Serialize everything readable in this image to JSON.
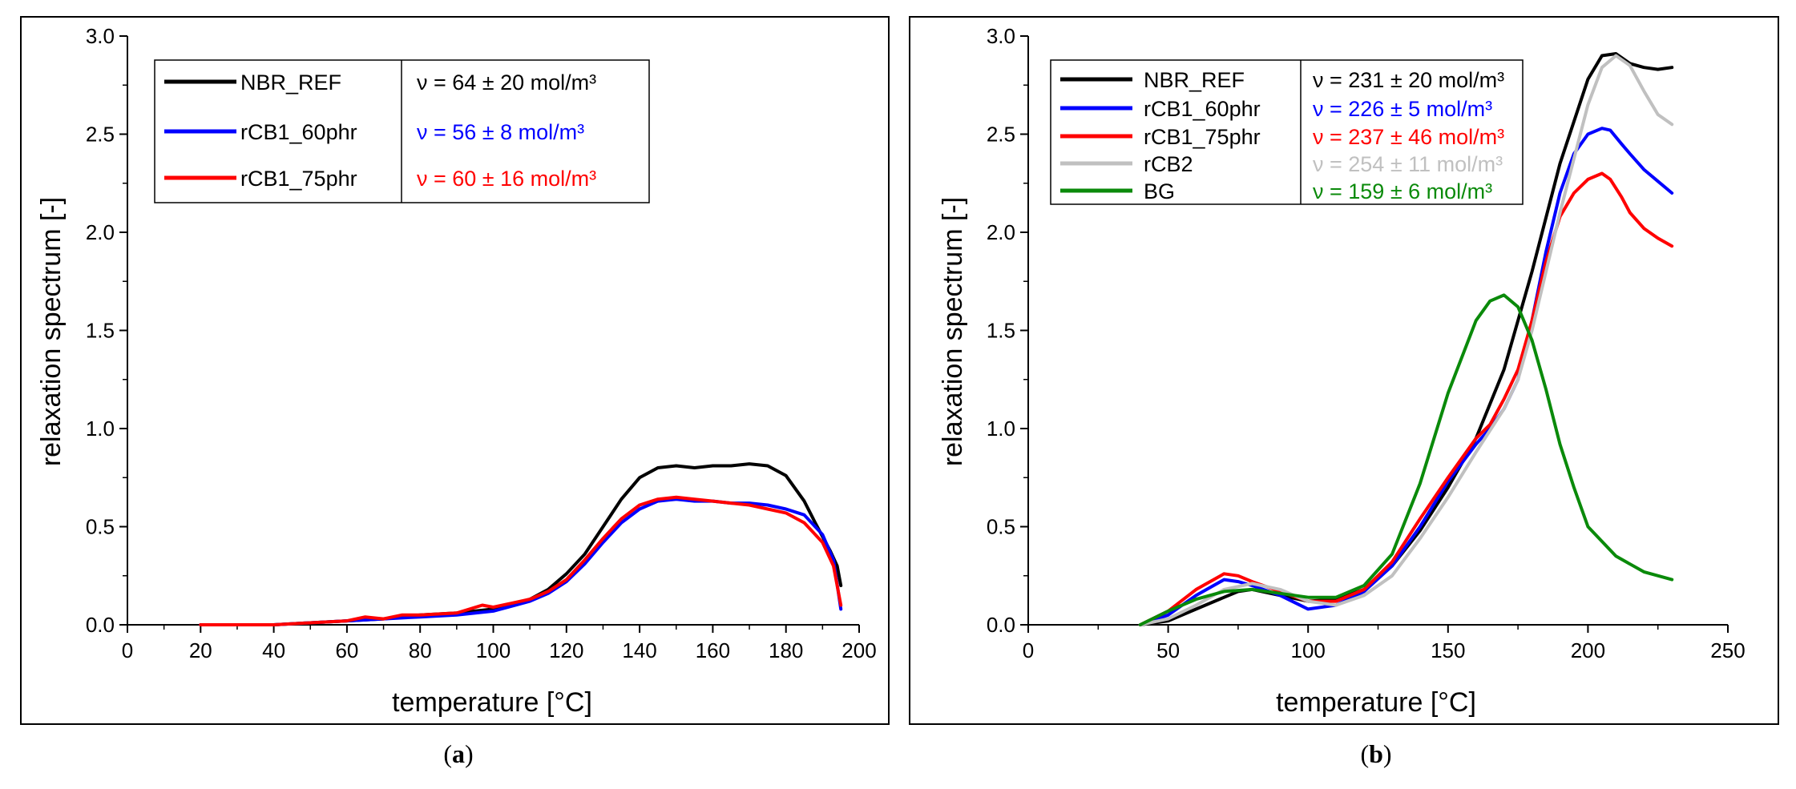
{
  "chart_data": [
    {
      "type": "line",
      "panel_label": "a",
      "xlabel": "temperature [°C]",
      "ylabel": "relaxation spectrum [-]",
      "xlim": [
        0,
        200
      ],
      "ylim": [
        0,
        3.0
      ],
      "xticks": [
        "0",
        "20",
        "40",
        "60",
        "80",
        "100",
        "120",
        "140",
        "160",
        "180",
        "200"
      ],
      "yticks": [
        "0.0",
        "0.5",
        "1.0",
        "1.5",
        "2.0",
        "2.5",
        "3.0"
      ],
      "grid": false,
      "legend_position": "top-left",
      "series": [
        {
          "name": "NBR_REF",
          "annotation": "ν = 64 ± 20 mol/m³",
          "color": "#000000",
          "x": [
            20,
            40,
            50,
            60,
            70,
            80,
            90,
            100,
            110,
            115,
            120,
            125,
            130,
            135,
            140,
            145,
            150,
            155,
            160,
            165,
            170,
            175,
            180,
            185,
            188,
            190,
            192,
            194,
            195
          ],
          "y": [
            0.0,
            0.0,
            0.01,
            0.02,
            0.03,
            0.05,
            0.06,
            0.08,
            0.13,
            0.18,
            0.26,
            0.36,
            0.5,
            0.64,
            0.75,
            0.8,
            0.81,
            0.8,
            0.81,
            0.81,
            0.82,
            0.81,
            0.76,
            0.63,
            0.52,
            0.45,
            0.38,
            0.3,
            0.2
          ]
        },
        {
          "name": "rCB1_60phr",
          "annotation": "ν = 56 ± 8 mol/m³",
          "color": "#0000ff",
          "x": [
            20,
            40,
            50,
            60,
            70,
            80,
            90,
            100,
            110,
            115,
            120,
            125,
            130,
            135,
            140,
            145,
            150,
            155,
            160,
            165,
            170,
            175,
            180,
            185,
            190,
            193,
            195
          ],
          "y": [
            0.0,
            0.0,
            0.01,
            0.02,
            0.03,
            0.04,
            0.05,
            0.07,
            0.12,
            0.16,
            0.22,
            0.31,
            0.42,
            0.52,
            0.59,
            0.63,
            0.64,
            0.63,
            0.63,
            0.62,
            0.62,
            0.61,
            0.59,
            0.56,
            0.46,
            0.33,
            0.08
          ]
        },
        {
          "name": "rCB1_75phr",
          "annotation": "ν = 60 ± 16 mol/m³",
          "color": "#ff0000",
          "x": [
            20,
            40,
            50,
            60,
            65,
            70,
            75,
            80,
            90,
            97,
            100,
            110,
            115,
            120,
            125,
            130,
            135,
            140,
            145,
            150,
            155,
            160,
            165,
            170,
            175,
            180,
            185,
            190,
            193,
            195
          ],
          "y": [
            0.0,
            0.0,
            0.01,
            0.02,
            0.04,
            0.03,
            0.05,
            0.05,
            0.06,
            0.1,
            0.09,
            0.13,
            0.17,
            0.23,
            0.33,
            0.44,
            0.54,
            0.61,
            0.64,
            0.65,
            0.64,
            0.63,
            0.62,
            0.61,
            0.59,
            0.57,
            0.52,
            0.42,
            0.3,
            0.1
          ]
        }
      ]
    },
    {
      "type": "line",
      "panel_label": "b",
      "xlabel": "temperature [°C]",
      "ylabel": "relaxation spectrum [-]",
      "xlim": [
        0,
        250
      ],
      "ylim": [
        0,
        3.0
      ],
      "xticks": [
        "0",
        "50",
        "100",
        "150",
        "200",
        "250"
      ],
      "yticks": [
        "0.0",
        "0.5",
        "1.0",
        "1.5",
        "2.0",
        "2.5",
        "3.0"
      ],
      "grid": false,
      "legend_position": "top-left",
      "series": [
        {
          "name": "NBR_REF",
          "annotation": "ν = 231 ± 20 mol/m³",
          "color": "#000000",
          "x": [
            40,
            50,
            60,
            70,
            75,
            80,
            90,
            100,
            110,
            120,
            130,
            140,
            150,
            160,
            170,
            180,
            190,
            200,
            205,
            210,
            215,
            220,
            225,
            230
          ],
          "y": [
            0.0,
            0.02,
            0.08,
            0.14,
            0.17,
            0.18,
            0.15,
            0.12,
            0.13,
            0.18,
            0.3,
            0.48,
            0.7,
            0.95,
            1.3,
            1.8,
            2.35,
            2.78,
            2.9,
            2.91,
            2.86,
            2.84,
            2.83,
            2.84
          ]
        },
        {
          "name": "rCB1_60phr",
          "annotation": "ν = 226 ± 5 mol/m³",
          "color": "#0000ff",
          "x": [
            40,
            50,
            60,
            70,
            75,
            80,
            90,
            100,
            110,
            120,
            130,
            140,
            150,
            160,
            165,
            170,
            175,
            180,
            185,
            190,
            195,
            200,
            205,
            208,
            212,
            215,
            220,
            225,
            230
          ],
          "y": [
            0.0,
            0.05,
            0.15,
            0.23,
            0.22,
            0.2,
            0.15,
            0.08,
            0.1,
            0.17,
            0.3,
            0.5,
            0.73,
            0.92,
            1.0,
            1.1,
            1.25,
            1.55,
            1.9,
            2.2,
            2.4,
            2.5,
            2.53,
            2.52,
            2.45,
            2.4,
            2.32,
            2.26,
            2.2
          ]
        },
        {
          "name": "rCB1_75phr",
          "annotation": "ν = 237 ± 46 mol/m³",
          "color": "#ff0000",
          "x": [
            40,
            50,
            60,
            70,
            75,
            80,
            90,
            100,
            110,
            120,
            130,
            140,
            150,
            160,
            165,
            170,
            175,
            180,
            185,
            190,
            195,
            200,
            205,
            208,
            212,
            215,
            220,
            225,
            230
          ],
          "y": [
            0.0,
            0.07,
            0.18,
            0.26,
            0.25,
            0.22,
            0.17,
            0.12,
            0.12,
            0.18,
            0.32,
            0.54,
            0.75,
            0.95,
            1.02,
            1.15,
            1.3,
            1.55,
            1.85,
            2.08,
            2.2,
            2.27,
            2.3,
            2.27,
            2.18,
            2.1,
            2.02,
            1.97,
            1.93
          ]
        },
        {
          "name": "rCB2",
          "annotation": "ν = 254 ± 11 mol/m³",
          "color": "#c0c0c0",
          "x": [
            40,
            50,
            60,
            70,
            80,
            90,
            100,
            110,
            120,
            130,
            140,
            150,
            160,
            170,
            175,
            180,
            190,
            200,
            205,
            210,
            215,
            220,
            225,
            230
          ],
          "y": [
            0.0,
            0.03,
            0.1,
            0.18,
            0.21,
            0.18,
            0.12,
            0.1,
            0.15,
            0.25,
            0.44,
            0.65,
            0.88,
            1.1,
            1.25,
            1.5,
            2.1,
            2.65,
            2.84,
            2.9,
            2.85,
            2.72,
            2.6,
            2.55
          ]
        },
        {
          "name": "BG",
          "annotation": "ν = 159 ± 6 mol/m³",
          "color": "#0a8a0a",
          "x": [
            40,
            50,
            60,
            70,
            80,
            90,
            100,
            110,
            120,
            130,
            140,
            150,
            160,
            165,
            170,
            175,
            180,
            185,
            190,
            195,
            200,
            210,
            220,
            230
          ],
          "y": [
            0.0,
            0.07,
            0.13,
            0.17,
            0.18,
            0.16,
            0.14,
            0.14,
            0.2,
            0.36,
            0.72,
            1.18,
            1.55,
            1.65,
            1.68,
            1.62,
            1.45,
            1.2,
            0.92,
            0.7,
            0.5,
            0.35,
            0.27,
            0.23
          ]
        }
      ]
    }
  ]
}
